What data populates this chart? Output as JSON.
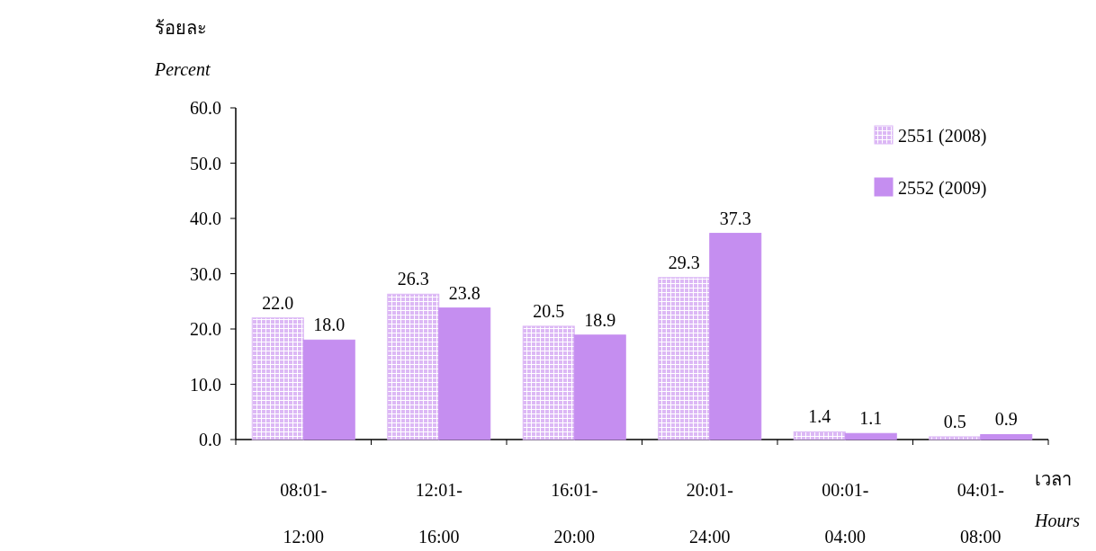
{
  "chart_data": {
    "type": "bar",
    "ylabel": "ร้อยละ\nPercent",
    "xlabel": "เวลา\nHours",
    "categories": [
      "08:01-12:00",
      "12:01-16:00",
      "16:01-20:00",
      "20:01-24:00",
      "00:01-04:00",
      "04:01-08:00"
    ],
    "series": [
      {
        "name": "2551 (2008)",
        "color": "#dcb8f5",
        "values": [
          22.0,
          26.3,
          20.5,
          29.3,
          1.4,
          0.5
        ],
        "value_labels": [
          "22.0",
          "26.3",
          "20.5",
          "29.3",
          "1.4",
          "0.5"
        ]
      },
      {
        "name": "2552 (2009)",
        "color": "#c58ef0",
        "values": [
          18.0,
          23.8,
          18.9,
          37.3,
          1.1,
          0.9
        ],
        "value_labels": [
          "18.0",
          "23.8",
          "18.9",
          "37.3",
          "1.1",
          "0.9"
        ]
      }
    ],
    "ylim": [
      0,
      60
    ],
    "yticks": [
      {
        "value": 0,
        "label": "0.0"
      },
      {
        "value": 10,
        "label": "10.0"
      },
      {
        "value": 20,
        "label": "20.0"
      },
      {
        "value": 30,
        "label": "30.0"
      },
      {
        "value": 40,
        "label": "40.0"
      },
      {
        "value": 50,
        "label": "50.0"
      },
      {
        "value": 60,
        "label": "60.0"
      }
    ],
    "legend": "top right"
  }
}
